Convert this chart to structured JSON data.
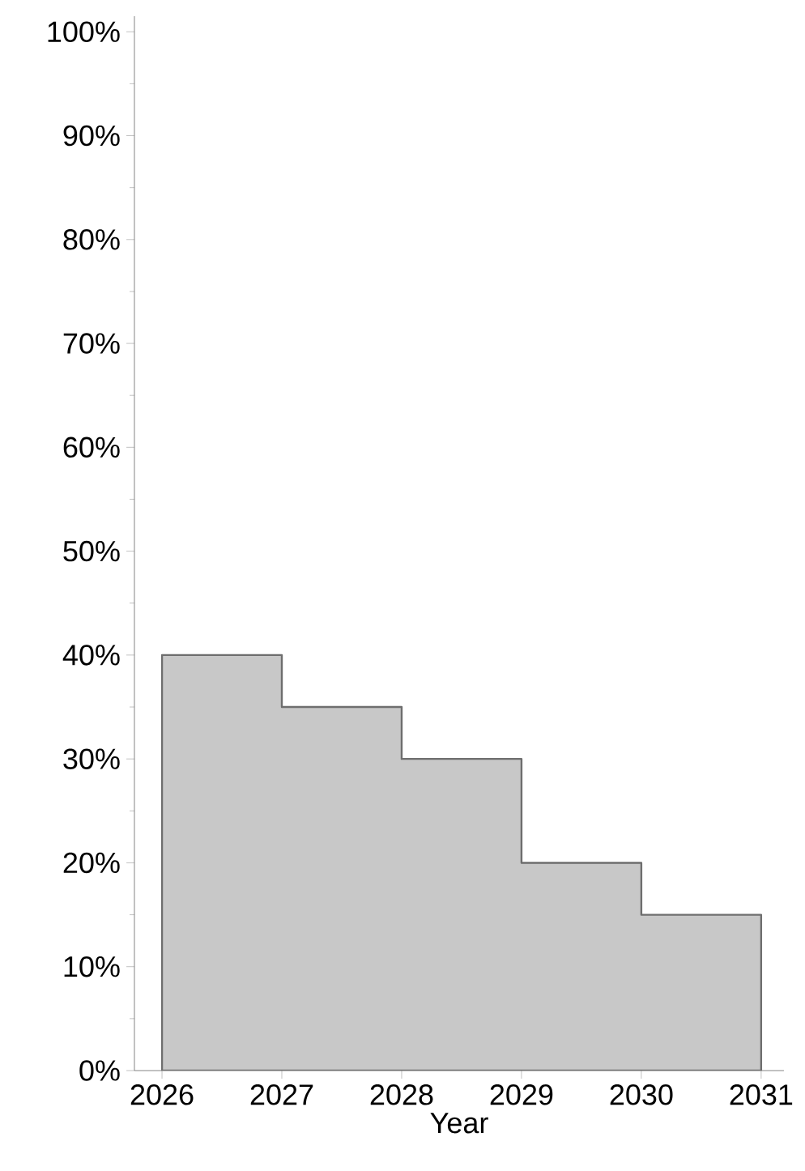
{
  "chart_data": {
    "type": "area",
    "xlabel": "Year",
    "x": [
      2026,
      2027,
      2027,
      2028,
      2028,
      2029,
      2029,
      2030,
      2030,
      2031
    ],
    "series": [
      {
        "color": "#c8c8c8",
        "values": [
          40,
          40,
          35,
          35,
          30,
          30,
          20,
          20,
          15,
          15
        ]
      }
    ],
    "xlim": [
      2025.77,
      2031.19
    ],
    "ylim": [
      0,
      101.5
    ],
    "xticks": [
      2026,
      2027,
      2028,
      2029,
      2030,
      2031
    ],
    "yticks": [
      {
        "value": 0,
        "label": "0%"
      },
      {
        "value": 10,
        "label": "10%"
      },
      {
        "value": 20,
        "label": "20%"
      },
      {
        "value": 30,
        "label": "30%"
      },
      {
        "value": 40,
        "label": "40%"
      },
      {
        "value": 50,
        "label": "50%"
      },
      {
        "value": 60,
        "label": "60%"
      },
      {
        "value": 70,
        "label": "70%"
      },
      {
        "value": 80,
        "label": "80%"
      },
      {
        "value": 90,
        "label": "90%"
      },
      {
        "value": 100,
        "label": "100%"
      }
    ],
    "grid": false
  }
}
